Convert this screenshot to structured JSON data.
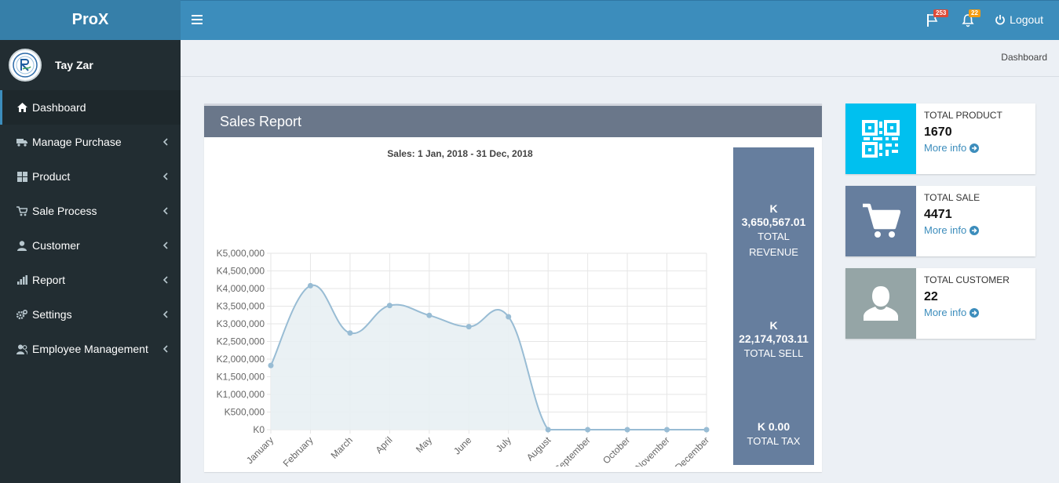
{
  "app": {
    "logo": "ProX"
  },
  "topbar": {
    "flag_count": "253",
    "bell_count": "22",
    "logout_label": "Logout"
  },
  "user": {
    "name": "Tay Zar"
  },
  "sidebar": {
    "items": [
      {
        "label": "Dashboard",
        "icon": "home-icon",
        "active": true
      },
      {
        "label": "Manage Purchase",
        "icon": "truck-icon"
      },
      {
        "label": "Product",
        "icon": "grid-icon"
      },
      {
        "label": "Sale Process",
        "icon": "cart-icon"
      },
      {
        "label": "Customer",
        "icon": "user-icon"
      },
      {
        "label": "Report",
        "icon": "bar-chart-icon"
      },
      {
        "label": "Settings",
        "icon": "gears-icon"
      },
      {
        "label": "Employee Management",
        "icon": "users-icon"
      }
    ]
  },
  "breadcrumb": {
    "current": "Dashboard"
  },
  "sales_report": {
    "title": "Sales Report",
    "stats": [
      {
        "value_line1": "K",
        "value_line2": "3,650,567.01",
        "label_line1": "TOTAL",
        "label_line2": "REVENUE"
      },
      {
        "value_line1": "K",
        "value_line2": "22,174,703.11",
        "label_line1": "TOTAL SELL"
      },
      {
        "value_line1": "K 0.00",
        "label_line1": "TOTAL TAX"
      }
    ]
  },
  "chart_data": {
    "type": "area",
    "title": "Sales: 1 Jan, 2018 - 31 Dec, 2018",
    "categories": [
      "January",
      "February",
      "March",
      "April",
      "May",
      "June",
      "July",
      "August",
      "September",
      "October",
      "November",
      "December"
    ],
    "values": [
      1820000,
      4080000,
      2740000,
      3520000,
      3240000,
      2920000,
      3200000,
      0,
      0,
      0,
      0,
      0
    ],
    "y_ticks": [
      "K0",
      "K500,000",
      "K1,000,000",
      "K1,500,000",
      "K2,000,000",
      "K2,500,000",
      "K3,000,000",
      "K3,500,000",
      "K4,000,000",
      "K4,500,000",
      "K5,000,000"
    ],
    "ylim": [
      0,
      5000000
    ],
    "grid": true,
    "colors": {
      "line": "#98bcd4",
      "fill": "#e8eff3",
      "grid": "#e6e6e6"
    }
  },
  "info_boxes": [
    {
      "label": "TOTAL PRODUCT",
      "value": "1670",
      "more": "More info",
      "color": "#00c0ef",
      "icon": "qrcode-icon"
    },
    {
      "label": "TOTAL SALE",
      "value": "4471",
      "more": "More info",
      "color": "#667e9e",
      "icon": "shopping-cart-icon"
    },
    {
      "label": "TOTAL CUSTOMER",
      "value": "22",
      "more": "More info",
      "color": "#95a5a6",
      "icon": "person-icon"
    }
  ]
}
